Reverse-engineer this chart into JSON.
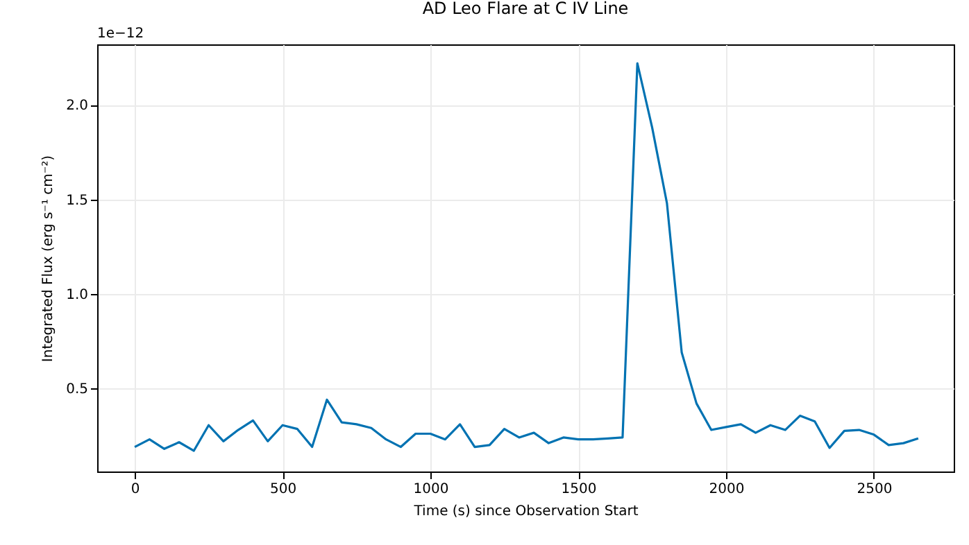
{
  "chart_data": {
    "type": "line",
    "title": "AD Leo Flare at C IV Line",
    "xlabel": "Time (s) since Observation Start",
    "ylabel": "Integrated Flux (erg s⁻¹ cm⁻²)",
    "annotations": [
      "1e−12"
    ],
    "x": [
      0,
      50,
      100,
      150,
      200,
      250,
      300,
      350,
      400,
      450,
      500,
      550,
      600,
      650,
      700,
      750,
      800,
      850,
      900,
      950,
      1000,
      1050,
      1100,
      1150,
      1200,
      1250,
      1300,
      1350,
      1400,
      1450,
      1500,
      1550,
      1600,
      1650,
      1700,
      1750,
      1800,
      1850,
      1900,
      1950,
      2000,
      2050,
      2100,
      2150,
      2200,
      2250,
      2300,
      2350,
      2400,
      2450,
      2500,
      2550,
      2600,
      2650
    ],
    "series": [
      {
        "color": "#0072b2",
        "values": [
          0.19,
          0.23,
          0.18,
          0.215,
          0.17,
          0.305,
          0.22,
          0.28,
          0.33,
          0.22,
          0.305,
          0.285,
          0.19,
          0.44,
          0.32,
          0.31,
          0.29,
          0.23,
          0.19,
          0.26,
          0.26,
          0.23,
          0.31,
          0.19,
          0.2,
          0.285,
          0.24,
          0.265,
          0.21,
          0.24,
          0.23,
          0.23,
          0.235,
          0.24,
          2.22,
          1.88,
          1.48,
          0.69,
          0.42,
          0.28,
          0.295,
          0.31,
          0.265,
          0.305,
          0.28,
          0.355,
          0.325,
          0.185,
          0.275,
          0.28,
          0.255,
          0.2,
          0.21,
          0.235
        ]
      }
    ],
    "xlim": [
      -127,
      2770
    ],
    "ylim": [
      0.06,
      2.32
    ],
    "xticks": [
      0,
      500,
      1000,
      1500,
      2000,
      2500
    ],
    "yticks": [
      {
        "value": 0.5,
        "label": "0.5"
      },
      {
        "value": 1,
        "label": "1.0"
      },
      {
        "value": 1.5,
        "label": "1.5"
      },
      {
        "value": 2,
        "label": "2.0"
      }
    ],
    "grid": true
  }
}
